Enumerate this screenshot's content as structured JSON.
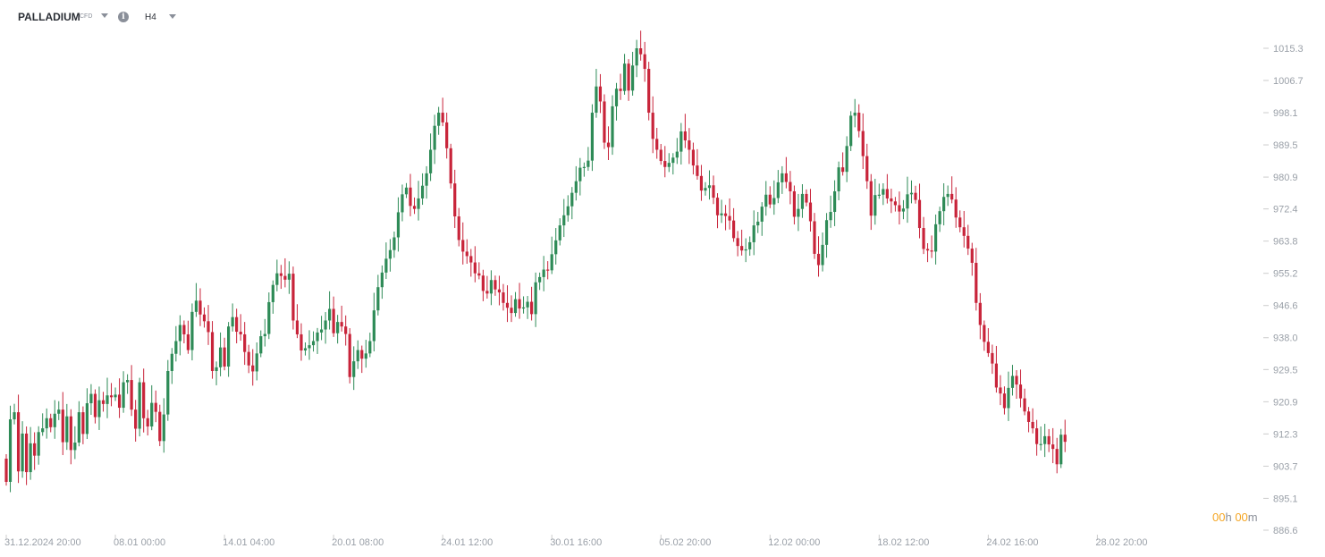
{
  "toolbar": {
    "symbol": "PALLADIUM",
    "symbol_type": "CFD",
    "info_glyph": "i",
    "timeframe": "H4",
    "icons": [
      "chevron-down-icon",
      "info-icon",
      "chevron-down-icon"
    ]
  },
  "countdown": {
    "hours": "00",
    "hours_unit": "h",
    "minutes": "00",
    "minutes_unit": "m"
  },
  "colors": {
    "up": "#2e8b57",
    "down": "#c8243a",
    "axis_text": "#9aa0a8",
    "grid_tick": "#cccccc"
  },
  "chart_data": {
    "type": "candlestick",
    "y_axis": {
      "ticks": [
        "1015.3",
        "1006.7",
        "998.1",
        "989.5",
        "980.9",
        "972.4",
        "963.8",
        "955.2",
        "946.6",
        "938.0",
        "929.5",
        "920.9",
        "912.3",
        "903.7",
        "895.1",
        "886.6"
      ],
      "range": [
        886.6,
        1015.3
      ],
      "side": "right"
    },
    "x_axis": {
      "ticks": [
        "31.12.2024  20:00",
        "08.01  00:00",
        "14.01  04:00",
        "20.01  08:00",
        "24.01  12:00",
        "30.01  16:00",
        "05.02  20:00",
        "12.02  00:00",
        "18.02  12:00",
        "24.02  16:00",
        "28.02  20:00"
      ],
      "tick_candle_index": [
        0,
        27,
        54,
        81,
        108,
        135,
        162,
        189,
        216,
        243,
        270
      ]
    },
    "close": [
      899.5,
      916.2,
      918.1,
      902.3,
      912.4,
      902.1,
      909.8,
      906.5,
      912.8,
      913.8,
      916.5,
      914.1,
      917.7,
      918.8,
      910.1,
      917.0,
      908.0,
      910.0,
      918.1,
      912.3,
      920.5,
      923.0,
      916.8,
      921.3,
      920.3,
      922.6,
      922.1,
      922.8,
      919.3,
      926.1,
      926.7,
      918.8,
      913.7,
      926.1,
      916.5,
      914.3,
      920.6,
      918.2,
      910.4,
      917.5,
      929.1,
      933.7,
      937.1,
      941.4,
      938.9,
      934.7,
      944.9,
      947.9,
      944.2,
      942.4,
      939.5,
      929.1,
      930.1,
      935.4,
      930.3,
      941.0,
      943.5,
      939.6,
      938.9,
      934.2,
      930.6,
      929.0,
      933.8,
      938.4,
      939.0,
      947.5,
      952.1,
      955.2,
      954.5,
      953.5,
      955.1,
      942.6,
      938.9,
      934.6,
      935.2,
      936.0,
      937.1,
      939.4,
      940.2,
      942.6,
      945.7,
      939.2,
      942.2,
      941.0,
      939.0,
      927.5,
      931.7,
      934.7,
      932.4,
      933.8,
      937.1,
      945.3,
      951.5,
      955.4,
      959.1,
      961.4,
      964.8,
      971.5,
      976.3,
      978.1,
      973.2,
      972.4,
      975.2,
      978.6,
      981.9,
      988.2,
      994.6,
      998.1,
      995.5,
      988.6,
      979.2,
      970.4,
      964.1,
      961.0,
      959.8,
      958.1,
      955.2,
      954.6,
      950.5,
      949.8,
      953.4,
      950.9,
      950.1,
      947.3,
      946.0,
      944.6,
      948.3,
      945.8,
      946.1,
      947.6,
      944.3,
      952.8,
      954.2,
      956.2,
      956.0,
      960.3,
      964.0,
      968.0,
      970.7,
      973.1,
      976.7,
      979.8,
      983.4,
      983.6,
      985.3,
      998.1,
      1005.1,
      1001.1,
      990.1,
      988.9,
      999.8,
      1004.5,
      1003.9,
      1011.2,
      1004.0,
      1010.7,
      1015.3,
      1013.7,
      1009.8,
      998.1,
      991.1,
      988.2,
      985.2,
      983.6,
      984.7,
      986.1,
      987.7,
      993.1,
      990.7,
      988.2,
      984.0,
      981.2,
      977.3,
      978.0,
      978.7,
      975.4,
      970.7,
      971.2,
      970.5,
      969.3,
      964.6,
      962.5,
      961.3,
      961.6,
      963.5,
      968.0,
      969.0,
      973.0,
      976.2,
      973.6,
      975.3,
      979.5,
      981.9,
      979.6,
      977.1,
      970.3,
      972.4,
      976.4,
      974.1,
      969.1,
      960.4,
      957.4,
      962.8,
      969.4,
      971.6,
      977.1,
      983.5,
      982.3,
      989.2,
      997.3,
      998.1,
      993.2,
      986.5,
      979.8,
      970.6,
      976.1,
      976.2,
      977.7,
      975.2,
      974.4,
      973.4,
      971.7,
      972.5,
      976.3,
      976.7,
      974.8,
      967.3,
      961.7,
      961.3,
      961.0,
      968.3,
      971.8,
      975.6,
      976.4,
      974.9,
      970.1,
      967.5,
      965.2,
      961.8,
      958.0,
      947.3,
      941.4,
      936.9,
      933.9,
      931.1,
      924.7,
      923.1,
      919.2,
      924.6,
      927.8,
      925.5,
      921.8,
      918.3,
      915.5,
      913.8,
      909.6,
      909.6,
      911.7,
      909.5,
      908.3,
      904.2,
      912.1,
      910.2
    ],
    "open_first": 905.7
  }
}
